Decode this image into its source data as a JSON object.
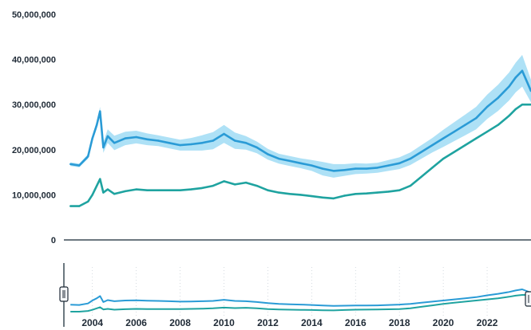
{
  "chart_data": {
    "type": "line",
    "title": "",
    "xlabel": "",
    "ylabel": "",
    "xlim": [
      2002.7,
      2024.0
    ],
    "ylim": [
      0,
      50000000
    ],
    "grid": false,
    "legend": "none",
    "y_ticks": [
      {
        "value": 0,
        "label": "0"
      },
      {
        "value": 10000000,
        "label": "10,000,000"
      },
      {
        "value": 20000000,
        "label": "20,000,000"
      },
      {
        "value": 30000000,
        "label": "30,000,000"
      },
      {
        "value": 40000000,
        "label": "40,000,000"
      },
      {
        "value": 50000000,
        "label": "50,000,000"
      }
    ],
    "x_ticks": [
      "2004",
      "2006",
      "2008",
      "2010",
      "2012",
      "2014",
      "2016",
      "2018",
      "2020",
      "2022"
    ],
    "x": [
      2003.0,
      2003.4,
      2003.8,
      2004.0,
      2004.2,
      2004.35,
      2004.5,
      2004.7,
      2005.0,
      2005.5,
      2006.0,
      2006.5,
      2007.0,
      2007.5,
      2008.0,
      2008.5,
      2009.0,
      2009.5,
      2010.0,
      2010.5,
      2011.0,
      2011.5,
      2012.0,
      2012.5,
      2013.0,
      2013.5,
      2014.0,
      2014.5,
      2015.0,
      2015.5,
      2016.0,
      2016.5,
      2017.0,
      2017.5,
      2018.0,
      2018.5,
      2019.0,
      2019.5,
      2020.0,
      2020.5,
      2021.0,
      2021.5,
      2022.0,
      2022.5,
      2023.0,
      2023.3,
      2023.6,
      2024.0
    ],
    "series": [
      {
        "color": "#2a9bd6",
        "values": [
          16800000,
          16500000,
          18500000,
          22500000,
          25500000,
          28500000,
          20500000,
          23000000,
          21500000,
          22500000,
          22800000,
          22300000,
          22000000,
          21500000,
          21000000,
          21200000,
          21500000,
          22000000,
          23500000,
          22000000,
          21500000,
          20500000,
          19000000,
          18000000,
          17500000,
          17000000,
          16500000,
          15800000,
          15300000,
          15500000,
          15800000,
          15800000,
          16000000,
          16500000,
          17000000,
          18000000,
          19500000,
          21000000,
          22500000,
          24000000,
          25500000,
          27000000,
          29500000,
          31500000,
          34000000,
          36000000,
          37500000,
          33000000
        ],
        "band": [
          400000,
          400000,
          500000,
          600000,
          800000,
          1000000,
          1200000,
          1500000,
          1600000,
          1500000,
          1400000,
          1300000,
          1200000,
          1200000,
          1200000,
          1400000,
          1700000,
          1900000,
          2000000,
          1800000,
          1500000,
          1300000,
          1200000,
          1100000,
          1100000,
          1100000,
          1200000,
          1500000,
          1500000,
          1300000,
          1200000,
          1100000,
          1100000,
          1200000,
          1300000,
          1400000,
          1500000,
          1600000,
          1900000,
          2100000,
          2300000,
          2500000,
          2700000,
          2900000,
          3100000,
          3300000,
          3500000,
          2500000
        ]
      },
      {
        "color": "#1fa3a0",
        "values": [
          7500000,
          7500000,
          8500000,
          10000000,
          12000000,
          13500000,
          10500000,
          11200000,
          10200000,
          10800000,
          11200000,
          11000000,
          11000000,
          11000000,
          11000000,
          11200000,
          11500000,
          12000000,
          13000000,
          12300000,
          12700000,
          12000000,
          11000000,
          10500000,
          10200000,
          10000000,
          9700000,
          9400000,
          9200000,
          9800000,
          10200000,
          10300000,
          10500000,
          10700000,
          11000000,
          12000000,
          14000000,
          16000000,
          18000000,
          19500000,
          21000000,
          22500000,
          24000000,
          25500000,
          27500000,
          29000000,
          30000000,
          30000000
        ]
      }
    ]
  }
}
